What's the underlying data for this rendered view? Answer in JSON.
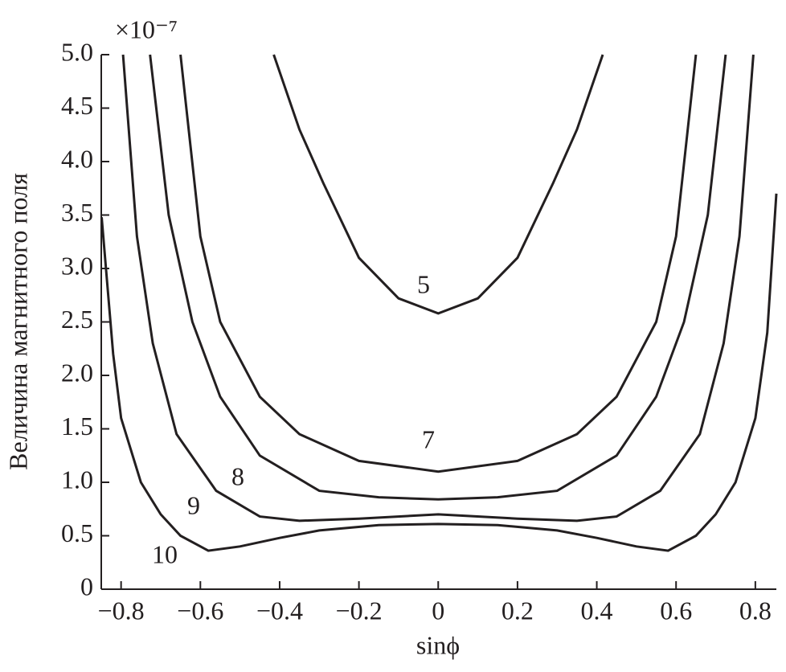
{
  "chart_data": {
    "type": "line",
    "x_label": "sinϕ",
    "y_label": "Величина магнитного поля",
    "y_offset_text": "×10⁻⁷",
    "xlim": [
      -0.85,
      0.853
    ],
    "ylim": [
      0,
      5.0
    ],
    "xticks": [
      {
        "value": -0.8,
        "label": "−0.8"
      },
      {
        "value": -0.6,
        "label": "−0.6"
      },
      {
        "value": -0.4,
        "label": "−0.4"
      },
      {
        "value": -0.2,
        "label": "−0.2"
      },
      0,
      0.2,
      0.4,
      0.6,
      0.8
    ],
    "yticks": [
      0,
      0.5,
      {
        "value": 1.0,
        "label": "1.0"
      },
      1.5,
      {
        "value": 2.0,
        "label": "2.0"
      },
      2.5,
      {
        "value": 3.0,
        "label": "3.0"
      },
      3.5,
      {
        "value": 4.0,
        "label": "4.0"
      },
      4.5,
      {
        "value": 5.0,
        "label": "5.0"
      }
    ],
    "series": [
      {
        "name": "5",
        "color": "#231f20",
        "x": [
          -0.415,
          -0.35,
          -0.29,
          -0.2,
          -0.1,
          0,
          0.1,
          0.2,
          0.29,
          0.35,
          0.415
        ],
        "values": [
          5.0,
          4.3,
          3.8,
          3.1,
          2.72,
          2.58,
          2.72,
          3.1,
          3.8,
          4.3,
          5.0
        ]
      },
      {
        "name": "7",
        "color": "#231f20",
        "x": [
          -0.65,
          -0.6,
          -0.55,
          -0.45,
          -0.35,
          -0.2,
          0,
          0.2,
          0.35,
          0.45,
          0.55,
          0.6,
          0.65
        ],
        "values": [
          5.0,
          3.3,
          2.5,
          1.8,
          1.45,
          1.2,
          1.1,
          1.2,
          1.45,
          1.8,
          2.5,
          3.3,
          5.0
        ]
      },
      {
        "name": "8",
        "color": "#231f20",
        "x": [
          -0.727,
          -0.68,
          -0.62,
          -0.55,
          -0.45,
          -0.3,
          -0.15,
          0,
          0.15,
          0.3,
          0.45,
          0.55,
          0.62,
          0.68,
          0.725
        ],
        "values": [
          5.0,
          3.5,
          2.5,
          1.8,
          1.25,
          0.92,
          0.86,
          0.84,
          0.86,
          0.92,
          1.25,
          1.8,
          2.5,
          3.5,
          5.0
        ]
      },
      {
        "name": "9",
        "color": "#231f20",
        "x": [
          -0.795,
          -0.76,
          -0.72,
          -0.66,
          -0.56,
          -0.45,
          -0.35,
          -0.2,
          0,
          0.2,
          0.35,
          0.45,
          0.56,
          0.66,
          0.72,
          0.76,
          0.795
        ],
        "values": [
          5.0,
          3.3,
          2.3,
          1.45,
          0.92,
          0.68,
          0.64,
          0.66,
          0.7,
          0.66,
          0.64,
          0.68,
          0.92,
          1.45,
          2.3,
          3.3,
          5.0
        ]
      },
      {
        "name": "10",
        "color": "#231f20",
        "x": [
          -0.849,
          -0.82,
          -0.8,
          -0.75,
          -0.7,
          -0.65,
          -0.58,
          -0.5,
          -0.4,
          -0.3,
          -0.15,
          0,
          0.15,
          0.3,
          0.4,
          0.5,
          0.58,
          0.65,
          0.7,
          0.75,
          0.8,
          0.83,
          0.853
        ],
        "values": [
          3.48,
          2.2,
          1.6,
          1.0,
          0.7,
          0.5,
          0.36,
          0.4,
          0.48,
          0.55,
          0.6,
          0.61,
          0.6,
          0.55,
          0.48,
          0.4,
          0.36,
          0.5,
          0.7,
          1.0,
          1.6,
          2.4,
          3.7
        ]
      }
    ]
  }
}
